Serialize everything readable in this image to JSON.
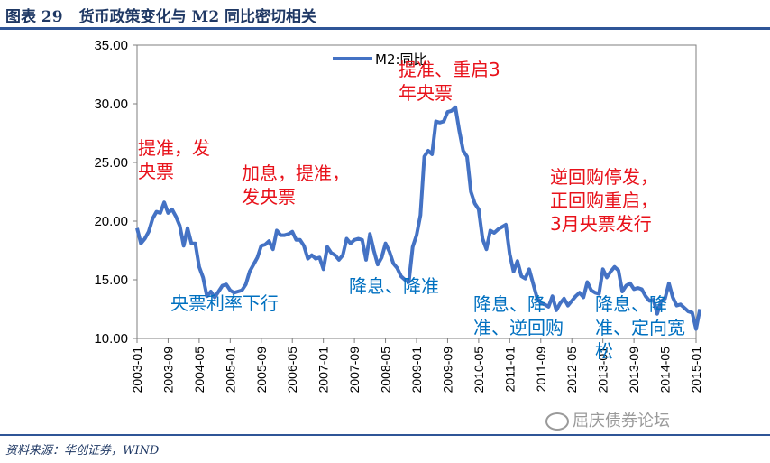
{
  "figure": {
    "number": "图表 29",
    "title": "货币政策变化与 M2 同比密切相关",
    "source": "资料来源：华创证券，WIND",
    "watermark": "屈庆债券论坛"
  },
  "colors": {
    "line": "#4472c4",
    "red": "#e8111a",
    "blue": "#0070c0",
    "axis": "#7f7f7f",
    "rule": "#2f5597"
  },
  "chart_data": {
    "type": "line",
    "legend": "M2:同比",
    "legend_position": "top-center",
    "grid": false,
    "ylim": [
      10,
      35
    ],
    "yticks": [
      "10.00",
      "15.00",
      "20.00",
      "25.00",
      "30.00",
      "35.00"
    ],
    "xticks": [
      "2003-01",
      "2003-09",
      "2004-05",
      "2005-01",
      "2005-09",
      "2006-05",
      "2007-01",
      "2007-09",
      "2008-05",
      "2009-01",
      "2009-09",
      "2010-05",
      "2011-01",
      "2011-09",
      "2012-05",
      "2013-01",
      "2013-09",
      "2014-05",
      "2015-01"
    ],
    "series": [
      {
        "name": "M2:同比",
        "x": [
          "2003-01",
          "2003-02",
          "2003-03",
          "2003-04",
          "2003-05",
          "2003-06",
          "2003-07",
          "2003-08",
          "2003-09",
          "2003-10",
          "2003-11",
          "2003-12",
          "2004-01",
          "2004-02",
          "2004-03",
          "2004-04",
          "2004-05",
          "2004-06",
          "2004-07",
          "2004-08",
          "2004-09",
          "2004-10",
          "2004-11",
          "2004-12",
          "2005-01",
          "2005-02",
          "2005-03",
          "2005-04",
          "2005-05",
          "2005-06",
          "2005-07",
          "2005-08",
          "2005-09",
          "2005-10",
          "2005-11",
          "2005-12",
          "2006-01",
          "2006-02",
          "2006-03",
          "2006-04",
          "2006-05",
          "2006-06",
          "2006-07",
          "2006-08",
          "2006-09",
          "2006-10",
          "2006-11",
          "2006-12",
          "2007-01",
          "2007-02",
          "2007-03",
          "2007-04",
          "2007-05",
          "2007-06",
          "2007-07",
          "2007-08",
          "2007-09",
          "2007-10",
          "2007-11",
          "2007-12",
          "2008-01",
          "2008-02",
          "2008-03",
          "2008-04",
          "2008-05",
          "2008-06",
          "2008-07",
          "2008-08",
          "2008-09",
          "2008-10",
          "2008-11",
          "2008-12",
          "2009-01",
          "2009-02",
          "2009-03",
          "2009-04",
          "2009-05",
          "2009-06",
          "2009-07",
          "2009-08",
          "2009-09",
          "2009-10",
          "2009-11",
          "2009-12",
          "2010-01",
          "2010-02",
          "2010-03",
          "2010-04",
          "2010-05",
          "2010-06",
          "2010-07",
          "2010-08",
          "2010-09",
          "2010-10",
          "2010-11",
          "2010-12",
          "2011-01",
          "2011-02",
          "2011-03",
          "2011-04",
          "2011-05",
          "2011-06",
          "2011-07",
          "2011-08",
          "2011-09",
          "2011-10",
          "2011-11",
          "2011-12",
          "2012-01",
          "2012-02",
          "2012-03",
          "2012-04",
          "2012-05",
          "2012-06",
          "2012-07",
          "2012-08",
          "2012-09",
          "2012-10",
          "2012-11",
          "2012-12",
          "2013-01",
          "2013-02",
          "2013-03",
          "2013-04",
          "2013-05",
          "2013-06",
          "2013-07",
          "2013-08",
          "2013-09",
          "2013-10",
          "2013-11",
          "2013-12",
          "2014-01",
          "2014-02",
          "2014-03",
          "2014-04",
          "2014-05",
          "2014-06",
          "2014-07",
          "2014-08",
          "2014-09",
          "2014-10",
          "2014-11",
          "2014-12",
          "2015-01",
          "2015-02"
        ],
        "values": [
          19.4,
          18.1,
          18.5,
          19.1,
          20.2,
          20.8,
          20.7,
          21.6,
          20.7,
          21.0,
          20.4,
          19.6,
          17.9,
          19.4,
          18.1,
          18.1,
          16.1,
          15.2,
          13.6,
          14.0,
          13.5,
          14.0,
          14.5,
          14.6,
          14.1,
          13.9,
          14.0,
          14.1,
          14.6,
          15.7,
          16.3,
          16.9,
          17.9,
          18.0,
          18.3,
          17.6,
          19.2,
          18.8,
          18.8,
          18.9,
          19.1,
          18.4,
          18.4,
          17.9,
          16.8,
          17.1,
          16.8,
          16.9,
          15.9,
          17.8,
          17.3,
          17.1,
          16.7,
          17.1,
          18.5,
          18.1,
          18.4,
          18.5,
          18.4,
          16.7,
          18.9,
          17.5,
          16.3,
          16.9,
          18.1,
          17.4,
          16.4,
          16.0,
          15.3,
          15.0,
          14.8,
          17.8,
          18.8,
          20.5,
          25.5,
          26.0,
          25.7,
          28.5,
          28.4,
          28.5,
          29.3,
          29.4,
          29.7,
          27.7,
          26.0,
          25.5,
          22.5,
          21.5,
          21.0,
          18.5,
          17.6,
          19.2,
          19.0,
          19.3,
          19.5,
          19.7,
          17.2,
          15.7,
          16.6,
          15.3,
          15.1,
          15.9,
          14.7,
          13.5,
          13.0,
          12.9,
          12.7,
          13.6,
          12.4,
          13.0,
          13.4,
          12.8,
          13.2,
          13.6,
          13.9,
          13.5,
          14.8,
          14.1,
          13.9,
          13.8,
          15.9,
          15.2,
          15.7,
          16.1,
          15.8,
          14.0,
          14.5,
          14.7,
          14.2,
          14.3,
          14.2,
          13.6,
          13.2,
          13.3,
          12.1,
          13.2,
          13.4,
          14.7,
          13.5,
          12.8,
          12.9,
          12.6,
          12.3,
          12.2,
          10.8,
          12.5
        ]
      }
    ],
    "annotations_red": [
      {
        "lines": [
          "提准，发",
          "央票"
        ]
      },
      {
        "lines": [
          "加息，提准，",
          "发央票"
        ]
      },
      {
        "lines": [
          "提准、重启3",
          "年央票"
        ]
      },
      {
        "lines": [
          "逆回购停发，",
          "正回购重启，",
          "3月央票发行"
        ]
      }
    ],
    "annotations_blue": [
      {
        "lines": [
          "央票利率下行"
        ]
      },
      {
        "lines": [
          "降息、降准"
        ]
      },
      {
        "lines": [
          "降息、降",
          "准、逆回购"
        ]
      },
      {
        "lines": [
          "降息、降",
          "准、定向宽",
          "松"
        ]
      }
    ]
  }
}
